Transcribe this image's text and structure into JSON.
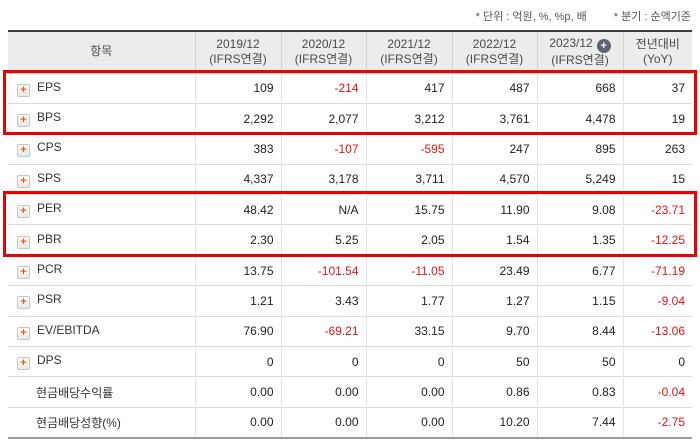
{
  "notes": {
    "unit": "* 단위 : 억원, %, %p, 배",
    "basis": "* 분기 : 순액기준"
  },
  "table": {
    "item_header": "항목",
    "expand_icon": "+",
    "add_button_icon": "+",
    "columns": [
      {
        "year": "2019/12",
        "sub": "(IFRS연결)"
      },
      {
        "year": "2020/12",
        "sub": "(IFRS연결)"
      },
      {
        "year": "2021/12",
        "sub": "(IFRS연결)"
      },
      {
        "year": "2022/12",
        "sub": "(IFRS연결)"
      },
      {
        "year": "2023/12",
        "sub": "(IFRS연결)",
        "has_add_button": true
      },
      {
        "year": "전년대비",
        "sub": "(YoY)"
      }
    ],
    "rows": [
      {
        "label": "EPS",
        "expandable": true,
        "values": [
          "109",
          "-214",
          "417",
          "487",
          "668",
          "37"
        ]
      },
      {
        "label": "BPS",
        "expandable": true,
        "values": [
          "2,292",
          "2,077",
          "3,212",
          "3,761",
          "4,478",
          "19"
        ]
      },
      {
        "label": "CPS",
        "expandable": true,
        "values": [
          "383",
          "-107",
          "-595",
          "247",
          "895",
          "263"
        ]
      },
      {
        "label": "SPS",
        "expandable": true,
        "values": [
          "4,337",
          "3,178",
          "3,711",
          "4,570",
          "5,249",
          "15"
        ]
      },
      {
        "label": "PER",
        "expandable": true,
        "values": [
          "48.42",
          "N/A",
          "15.75",
          "11.90",
          "9.08",
          "-23.71"
        ]
      },
      {
        "label": "PBR",
        "expandable": true,
        "values": [
          "2.30",
          "5.25",
          "2.05",
          "1.54",
          "1.35",
          "-12.25"
        ]
      },
      {
        "label": "PCR",
        "expandable": true,
        "values": [
          "13.75",
          "-101.54",
          "-11.05",
          "23.49",
          "6.77",
          "-71.19"
        ]
      },
      {
        "label": "PSR",
        "expandable": true,
        "values": [
          "1.21",
          "3.43",
          "1.77",
          "1.27",
          "1.15",
          "-9.04"
        ]
      },
      {
        "label": "EV/EBITDA",
        "expandable": true,
        "values": [
          "76.90",
          "-69.21",
          "33.15",
          "9.70",
          "8.44",
          "-13.06"
        ]
      },
      {
        "label": "DPS",
        "expandable": true,
        "values": [
          "0",
          "0",
          "0",
          "50",
          "50",
          "0"
        ]
      },
      {
        "label": "현금배당수익률",
        "expandable": false,
        "values": [
          "0.00",
          "0.00",
          "0.00",
          "0.86",
          "0.83",
          "-0.04"
        ]
      },
      {
        "label": "현금배당성향(%)",
        "expandable": false,
        "values": [
          "0.00",
          "0.00",
          "0.00",
          "10.20",
          "7.44",
          "-2.75"
        ]
      }
    ],
    "highlighted_row_groups": [
      [
        "EPS",
        "BPS"
      ],
      [
        "PER",
        "PBR"
      ]
    ]
  },
  "colors": {
    "negative": "#e21414",
    "highlight_border": "#ee0000",
    "accent_orange": "#f25a0a",
    "header_bg": "#ececec"
  }
}
